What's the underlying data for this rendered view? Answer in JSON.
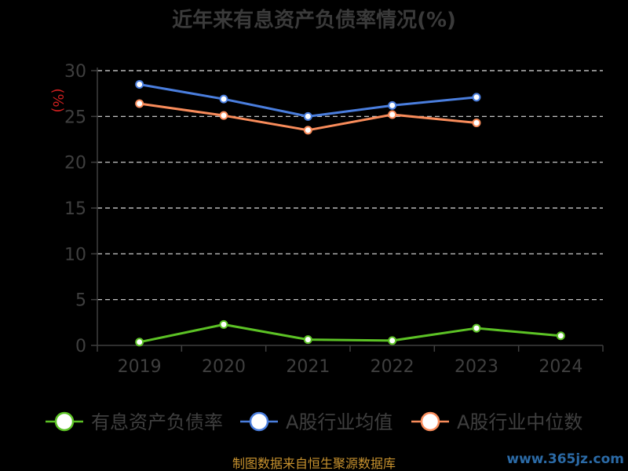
{
  "chart_data": {
    "type": "line",
    "title": "近年来有息资产负债率情况(%)",
    "ylabel": "(%)",
    "categories": [
      "2019",
      "2020",
      "2021",
      "2022",
      "2023",
      "2024"
    ],
    "ylim": [
      0,
      30
    ],
    "yticks": [
      0,
      5,
      10,
      15,
      20,
      25,
      30
    ],
    "grid": true,
    "legend_position": "bottom",
    "series": [
      {
        "name": "有息资产负债率",
        "color": "#5cc225",
        "values": [
          0.36,
          2.28,
          0.63,
          0.52,
          1.88,
          1.05
        ]
      },
      {
        "name": "A股行业均值",
        "color": "#4a7ede",
        "values": [
          28.5,
          26.9,
          25.0,
          26.2,
          27.1,
          null
        ]
      },
      {
        "name": "A股行业中位数",
        "color": "#f98c5b",
        "values": [
          26.4,
          25.1,
          23.5,
          25.2,
          24.3,
          null
        ]
      }
    ]
  },
  "footer": {
    "source": "制图数据来自恒生聚源数据库",
    "watermark": "www.365jz.com"
  }
}
